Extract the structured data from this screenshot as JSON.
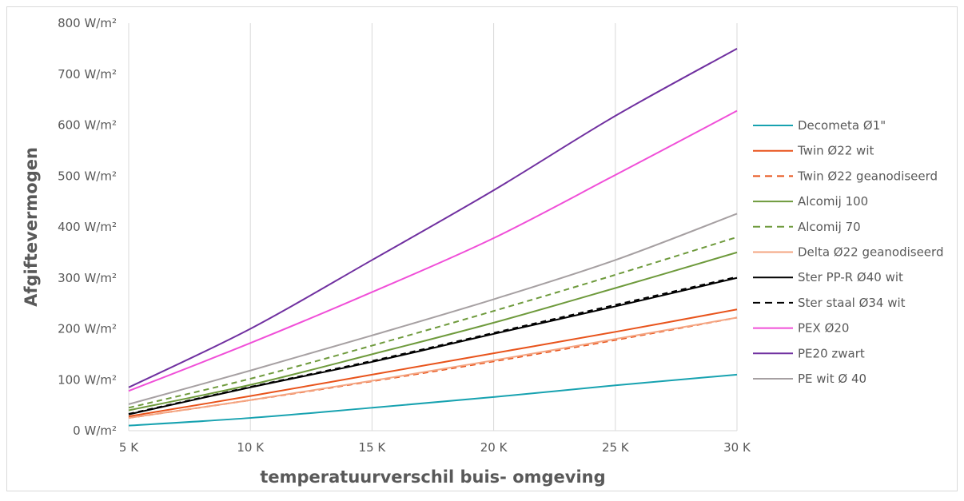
{
  "chart_data": {
    "type": "line",
    "xlabel": "temperatuurverschil buis- omgeving",
    "ylabel": "Afgiftevermogen",
    "x": [
      5,
      10,
      15,
      20,
      25,
      30
    ],
    "x_tick_labels": [
      "5 K",
      "10 K",
      "15 K",
      "20 K",
      "25 K",
      "30 K"
    ],
    "y_tick_values": [
      0,
      100,
      200,
      300,
      400,
      500,
      600,
      700,
      800
    ],
    "y_tick_labels": [
      "0 W/m²",
      "100 W/m²",
      "200 W/m²",
      "300 W/m²",
      "400 W/m²",
      "500 W/m²",
      "600 W/m²",
      "700 W/m²",
      "800 W/m²"
    ],
    "xlim": [
      5,
      30
    ],
    "ylim": [
      0,
      800
    ],
    "grid": "vertical",
    "legend_position": "right",
    "series": [
      {
        "name": "Decometa Ø1\"",
        "color": "#17a2b0",
        "dash": false,
        "values": [
          10,
          25,
          45,
          66,
          89,
          110
        ]
      },
      {
        "name": "Twin Ø22 wit",
        "color": "#e8531b",
        "dash": false,
        "values": [
          28,
          68,
          110,
          152,
          194,
          238
        ]
      },
      {
        "name": "Twin Ø22 geanodiseerd",
        "color": "#e8531b",
        "dash": true,
        "values": [
          25,
          60,
          97,
          136,
          178,
          222
        ]
      },
      {
        "name": "Alcomij 100",
        "color": "#6e9a3c",
        "dash": false,
        "values": [
          40,
          90,
          150,
          212,
          280,
          350
        ]
      },
      {
        "name": "Alcomij 70",
        "color": "#6e9a3c",
        "dash": true,
        "values": [
          45,
          102,
          167,
          235,
          306,
          380
        ]
      },
      {
        "name": "Delta Ø22 geanodiseerd",
        "color": "#f4a582",
        "dash": false,
        "values": [
          25,
          60,
          98,
          138,
          180,
          222
        ]
      },
      {
        "name": "Ster PP-R Ø40 wit",
        "color": "#000000",
        "dash": false,
        "values": [
          32,
          85,
          135,
          190,
          244,
          300
        ]
      },
      {
        "name": "Ster staal Ø34 wit",
        "color": "#000000",
        "dash": true,
        "values": [
          33,
          86,
          137,
          192,
          247,
          302
        ]
      },
      {
        "name": "PEX Ø20",
        "color": "#f04fd8",
        "dash": false,
        "values": [
          78,
          172,
          272,
          378,
          502,
          628
        ]
      },
      {
        "name": "PE20 zwart",
        "color": "#7030a0",
        "dash": false,
        "values": [
          85,
          200,
          335,
          472,
          618,
          750
        ]
      },
      {
        "name": "PE wit Ø 40",
        "color": "#a6a0a2",
        "dash": false,
        "values": [
          52,
          118,
          187,
          258,
          335,
          426
        ]
      }
    ]
  }
}
